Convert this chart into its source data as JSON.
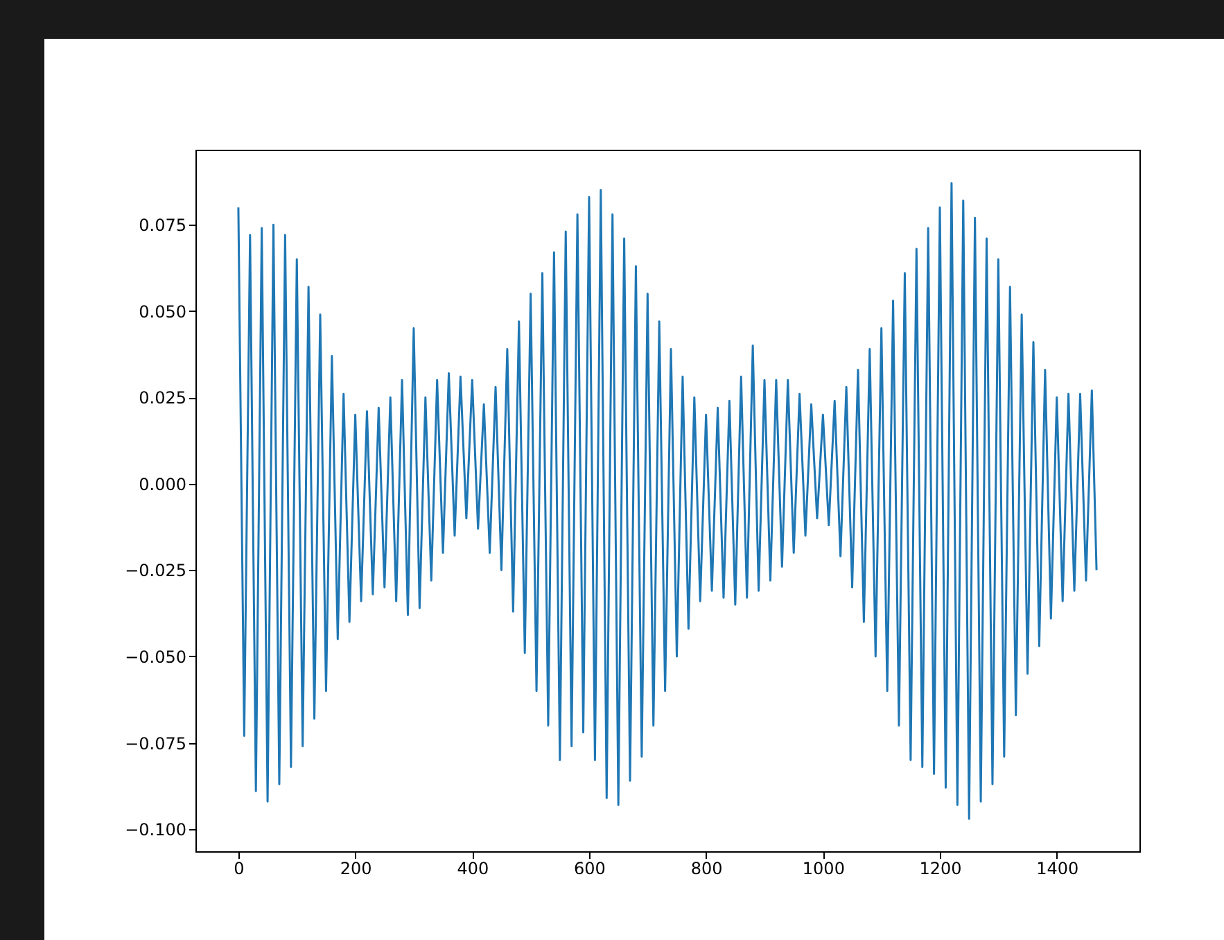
{
  "chart_data": {
    "type": "line",
    "x": [
      0,
      10,
      20,
      30,
      40,
      50,
      60,
      70,
      80,
      90,
      100,
      110,
      120,
      130,
      140,
      150,
      160,
      170,
      180,
      190,
      200,
      210,
      220,
      230,
      240,
      250,
      260,
      270,
      280,
      290,
      300,
      310,
      320,
      330,
      340,
      350,
      360,
      370,
      380,
      390,
      400,
      410,
      420,
      430,
      440,
      450,
      460,
      470,
      480,
      490,
      500,
      510,
      520,
      530,
      540,
      550,
      560,
      570,
      580,
      590,
      600,
      610,
      620,
      630,
      640,
      650,
      660,
      670,
      680,
      690,
      700,
      710,
      720,
      730,
      740,
      750,
      760,
      770,
      780,
      790,
      800,
      810,
      820,
      830,
      840,
      850,
      860,
      870,
      880,
      890,
      900,
      910,
      920,
      930,
      940,
      950,
      960,
      970,
      980,
      990,
      1000,
      1010,
      1020,
      1030,
      1040,
      1050,
      1060,
      1070,
      1080,
      1090,
      1100,
      1110,
      1120,
      1130,
      1140,
      1150,
      1160,
      1170,
      1180,
      1190,
      1200,
      1210,
      1220,
      1230,
      1240,
      1250,
      1260,
      1270,
      1280,
      1290,
      1300,
      1310,
      1320,
      1330,
      1340,
      1350,
      1360,
      1370,
      1380,
      1390,
      1400,
      1410,
      1420,
      1430,
      1440,
      1450,
      1460,
      1468
    ],
    "series": [
      {
        "color": "#1f77b4",
        "values": [
          0.08,
          -0.073,
          0.072,
          -0.089,
          0.074,
          -0.092,
          0.075,
          -0.087,
          0.072,
          -0.082,
          0.065,
          -0.076,
          0.057,
          -0.068,
          0.049,
          -0.06,
          0.037,
          -0.045,
          0.026,
          -0.04,
          0.02,
          -0.034,
          0.021,
          -0.032,
          0.022,
          -0.03,
          0.025,
          -0.034,
          0.03,
          -0.038,
          0.045,
          -0.036,
          0.025,
          -0.028,
          0.03,
          -0.02,
          0.032,
          -0.015,
          0.031,
          -0.01,
          0.03,
          -0.013,
          0.023,
          -0.02,
          0.028,
          -0.025,
          0.039,
          -0.037,
          0.047,
          -0.049,
          0.055,
          -0.06,
          0.061,
          -0.07,
          0.067,
          -0.08,
          0.073,
          -0.076,
          0.078,
          -0.072,
          0.083,
          -0.08,
          0.085,
          -0.091,
          0.078,
          -0.093,
          0.071,
          -0.086,
          0.063,
          -0.079,
          0.055,
          -0.07,
          0.047,
          -0.06,
          0.039,
          -0.05,
          0.031,
          -0.042,
          0.025,
          -0.034,
          0.02,
          -0.031,
          0.022,
          -0.033,
          0.024,
          -0.035,
          0.031,
          -0.033,
          0.04,
          -0.031,
          0.03,
          -0.028,
          0.03,
          -0.024,
          0.03,
          -0.02,
          0.026,
          -0.015,
          0.023,
          -0.01,
          0.02,
          -0.012,
          0.024,
          -0.021,
          0.028,
          -0.03,
          0.033,
          -0.04,
          0.039,
          -0.05,
          0.045,
          -0.06,
          0.053,
          -0.07,
          0.061,
          -0.08,
          0.068,
          -0.082,
          0.074,
          -0.084,
          0.08,
          -0.088,
          0.087,
          -0.093,
          0.082,
          -0.097,
          0.077,
          -0.092,
          0.071,
          -0.087,
          0.065,
          -0.079,
          0.057,
          -0.067,
          0.049,
          -0.055,
          0.041,
          -0.047,
          0.033,
          -0.039,
          0.025,
          -0.034,
          0.026,
          -0.031,
          0.026,
          -0.028,
          0.027,
          -0.025
        ]
      }
    ],
    "xlim": [
      -73.4,
      1541.4
    ],
    "ylim": [
      -0.1064,
      0.0967
    ],
    "xticks": [
      0,
      200,
      400,
      600,
      800,
      1000,
      1200,
      1400
    ],
    "yticks": [
      {
        "value": -0.1,
        "label": "−0.100"
      },
      {
        "value": -0.075,
        "label": "−0.075"
      },
      {
        "value": -0.05,
        "label": "−0.050"
      },
      {
        "value": -0.025,
        "label": "−0.025"
      },
      {
        "value": 0,
        "label": "0.000"
      },
      {
        "value": 0.025,
        "label": "0.025"
      },
      {
        "value": 0.05,
        "label": "0.050"
      },
      {
        "value": 0.075,
        "label": "0.075"
      }
    ]
  }
}
